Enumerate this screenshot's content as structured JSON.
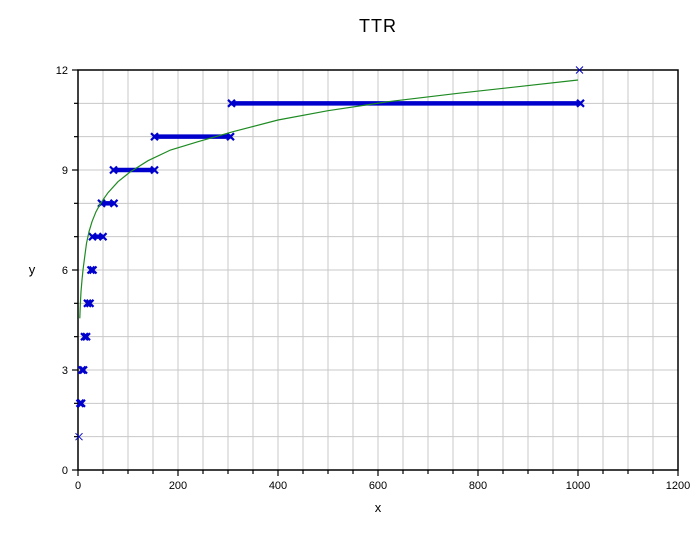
{
  "chart_data": {
    "type": "line",
    "title": "TTR",
    "xlabel": "x",
    "ylabel": "y",
    "xlim": [
      0,
      1200
    ],
    "ylim": [
      0,
      12
    ],
    "x_ticks": [
      0,
      200,
      400,
      600,
      800,
      1000,
      1200
    ],
    "y_ticks": [
      0,
      3,
      6,
      9,
      12
    ],
    "x_minor_step": 50,
    "y_minor_step": 1,
    "grid": true,
    "legend": "none",
    "colors": {
      "steps": "#0000CC",
      "curve": "#1E8B22",
      "grid": "#C8C8C8",
      "axis": "#000000",
      "background": "#FFFFFF"
    },
    "series": [
      {
        "name": "type-count-steps",
        "type": "segments",
        "color": "#0000CC",
        "marker": "x-bold",
        "segments": [
          {
            "y": 2,
            "x1": 4,
            "x2": 7
          },
          {
            "y": 3,
            "x1": 8,
            "x2": 11
          },
          {
            "y": 4,
            "x1": 13,
            "x2": 17
          },
          {
            "y": 5,
            "x1": 19,
            "x2": 24
          },
          {
            "y": 6,
            "x1": 26,
            "x2": 30
          },
          {
            "y": 7,
            "x1": 29,
            "x2": 50
          },
          {
            "y": 8,
            "x1": 47,
            "x2": 72
          },
          {
            "y": 9,
            "x1": 71,
            "x2": 153
          },
          {
            "y": 10,
            "x1": 153,
            "x2": 305
          },
          {
            "y": 11,
            "x1": 307,
            "x2": 1005
          }
        ]
      },
      {
        "name": "single-points",
        "type": "scatter",
        "color": "#0000CC",
        "marker": "x-thin",
        "points": [
          [
            2,
            1
          ],
          [
            1003,
            12
          ]
        ]
      },
      {
        "name": "fitted-curve",
        "type": "line",
        "color": "#1E8B22",
        "points": [
          [
            3.5,
            4.55
          ],
          [
            4.5,
            4.95
          ],
          [
            6,
            5.35
          ],
          [
            8,
            5.7
          ],
          [
            10,
            6.0
          ],
          [
            13,
            6.35
          ],
          [
            17,
            6.8
          ],
          [
            22,
            7.15
          ],
          [
            28,
            7.45
          ],
          [
            36,
            7.75
          ],
          [
            46,
            8.02
          ],
          [
            60,
            8.32
          ],
          [
            80,
            8.65
          ],
          [
            105,
            8.95
          ],
          [
            140,
            9.28
          ],
          [
            185,
            9.6
          ],
          [
            240,
            9.85
          ],
          [
            310,
            10.15
          ],
          [
            400,
            10.5
          ],
          [
            500,
            10.78
          ],
          [
            620,
            11.05
          ],
          [
            760,
            11.3
          ],
          [
            880,
            11.5
          ],
          [
            1000,
            11.7
          ]
        ]
      }
    ]
  }
}
